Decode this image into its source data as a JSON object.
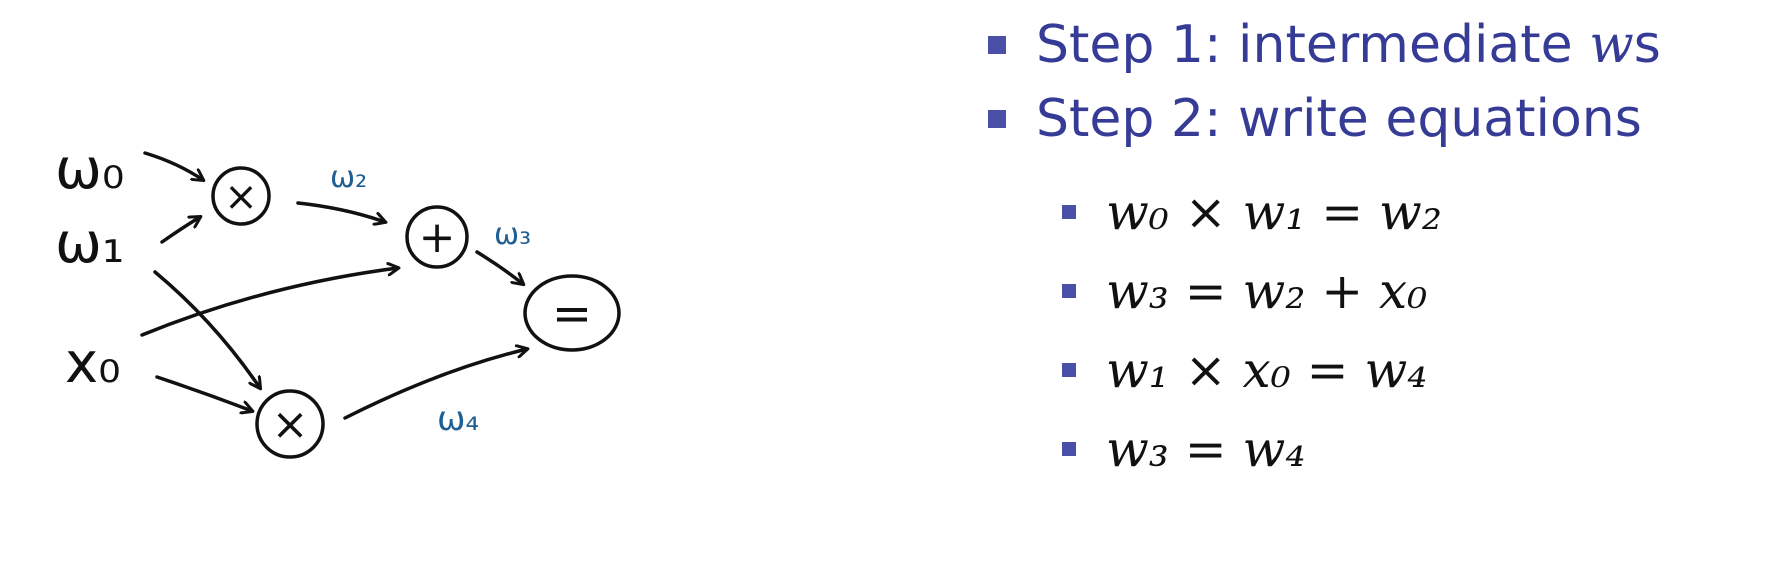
{
  "diagram": {
    "inputs": {
      "w0": "ω₀",
      "w1": "ω₁",
      "x0": "x₀"
    },
    "ops": {
      "mul_top": "×",
      "add": "+",
      "mul_bottom": "×",
      "eq": "="
    },
    "edge_labels": {
      "w2": "ω₂",
      "w3": "ω₃",
      "w4": "ω₄"
    },
    "colors": {
      "ink": "#111111",
      "edge_label": "#1F5F94"
    }
  },
  "steps": [
    {
      "label": "Step 1: intermediate ",
      "var": "w",
      "suffix": "s"
    },
    {
      "label": "Step 2: write equations"
    }
  ],
  "equations": [
    "w₀ × w₁ = w₂",
    "w₃ = w₂ + x₀",
    "w₁ × x₀ = w₄",
    "w₃ = w₄"
  ],
  "colors": {
    "heading": "#363B96",
    "bullet": "#4A4FA8",
    "equation": "#111111"
  }
}
